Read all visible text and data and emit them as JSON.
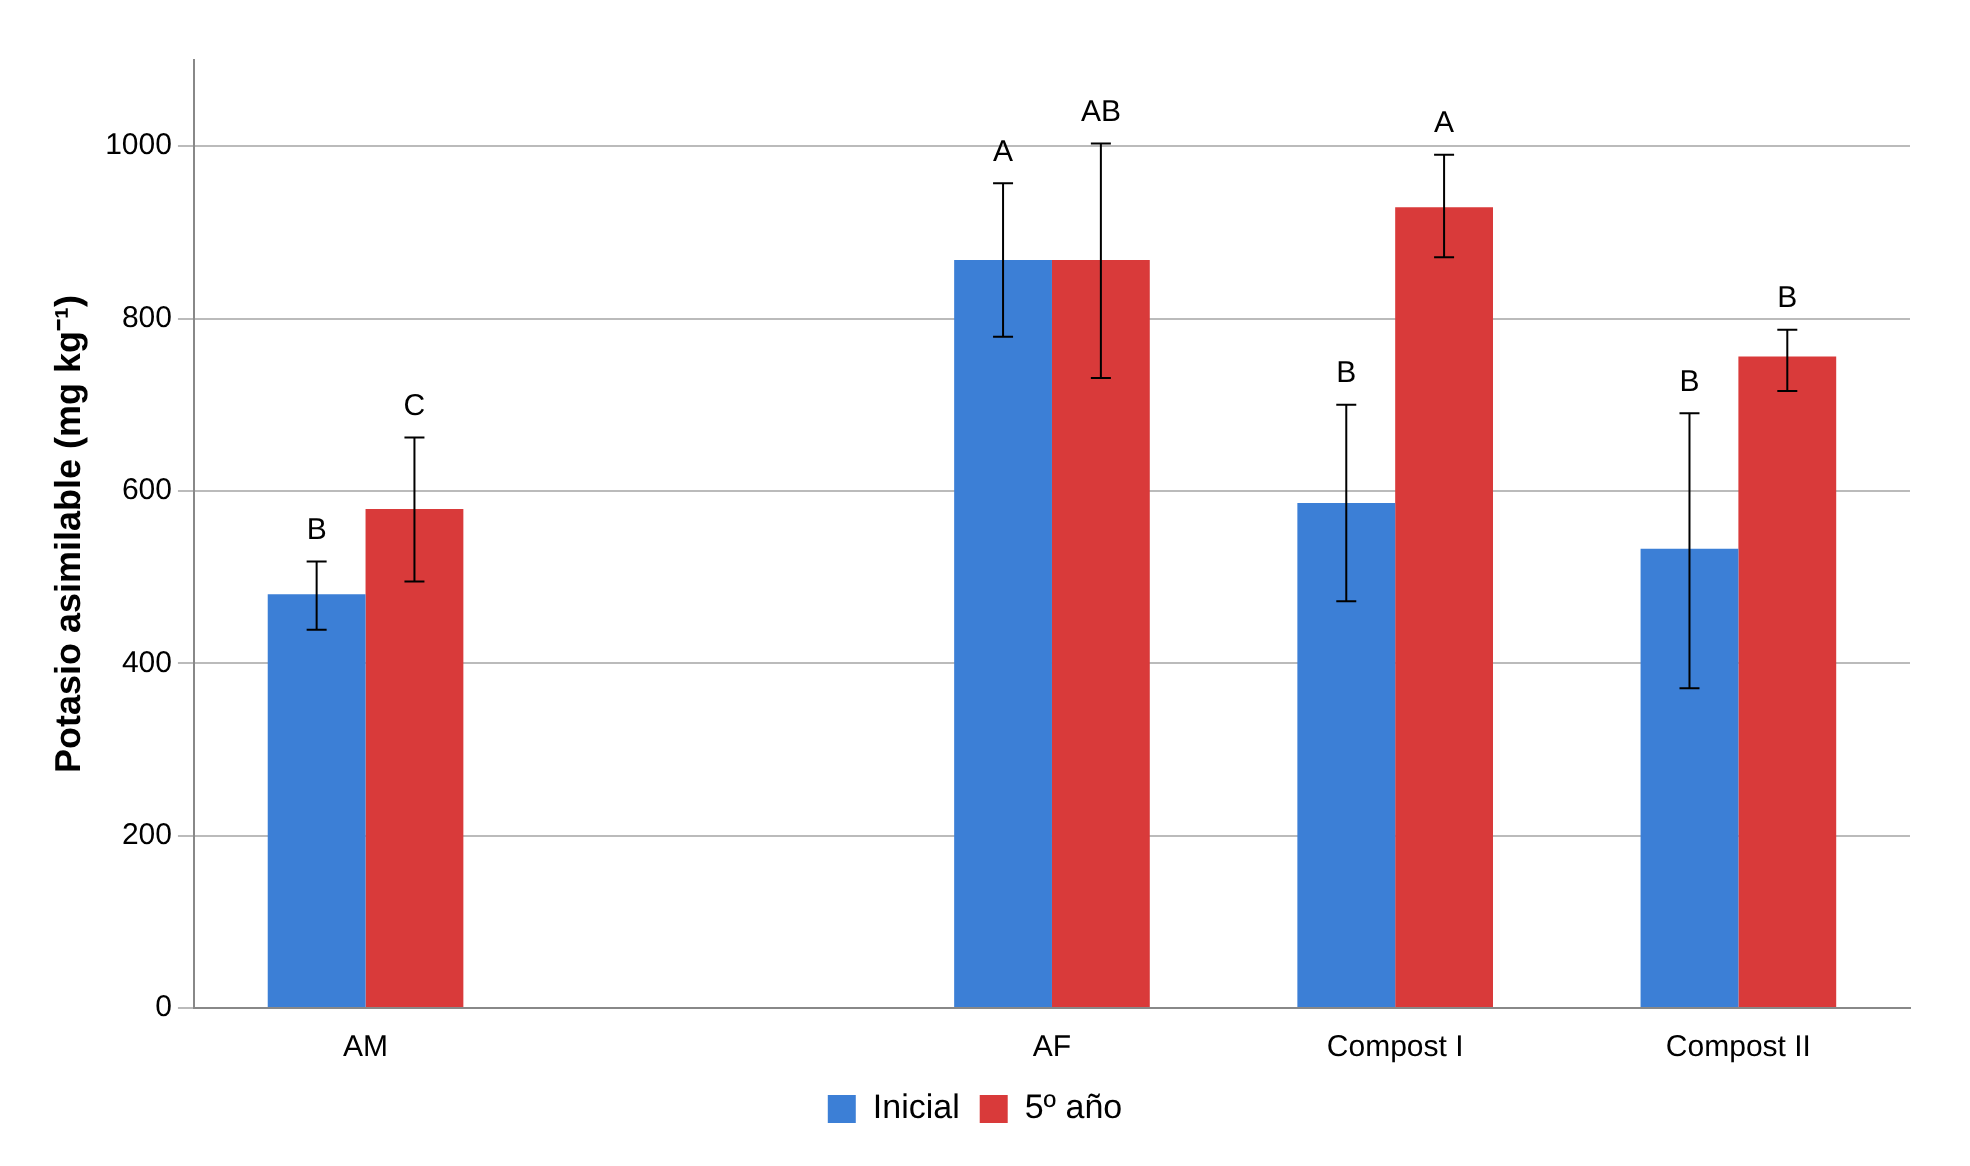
{
  "chart_data": {
    "type": "bar",
    "ylabel": "Potasio asimilable (mg kg⁻¹)",
    "categories": [
      "AM",
      null,
      "AF",
      "Compost I",
      "Compost II"
    ],
    "series": [
      {
        "name": "Inicial",
        "color": "#3c7fd6",
        "values": [
          480,
          null,
          868,
          586,
          533
        ],
        "errors": [
          [
            439,
            518
          ],
          null,
          [
            779,
            957
          ],
          [
            472,
            700
          ],
          [
            371,
            690
          ]
        ]
      },
      {
        "name": "5º año",
        "color": "#d93a3a",
        "values": [
          579,
          null,
          868,
          929,
          756
        ],
        "errors": [
          [
            495,
            662
          ],
          null,
          [
            731,
            1003
          ],
          [
            871,
            990
          ],
          [
            716,
            787
          ]
        ]
      }
    ],
    "annotations": [
      "B",
      "C",
      "A",
      "AB",
      "B",
      "A",
      "B",
      "B"
    ],
    "ylim": [
      0,
      1100
    ],
    "yticks": [
      0,
      200,
      400,
      600,
      800,
      1000
    ],
    "grid": "y",
    "legend": "bottom"
  }
}
